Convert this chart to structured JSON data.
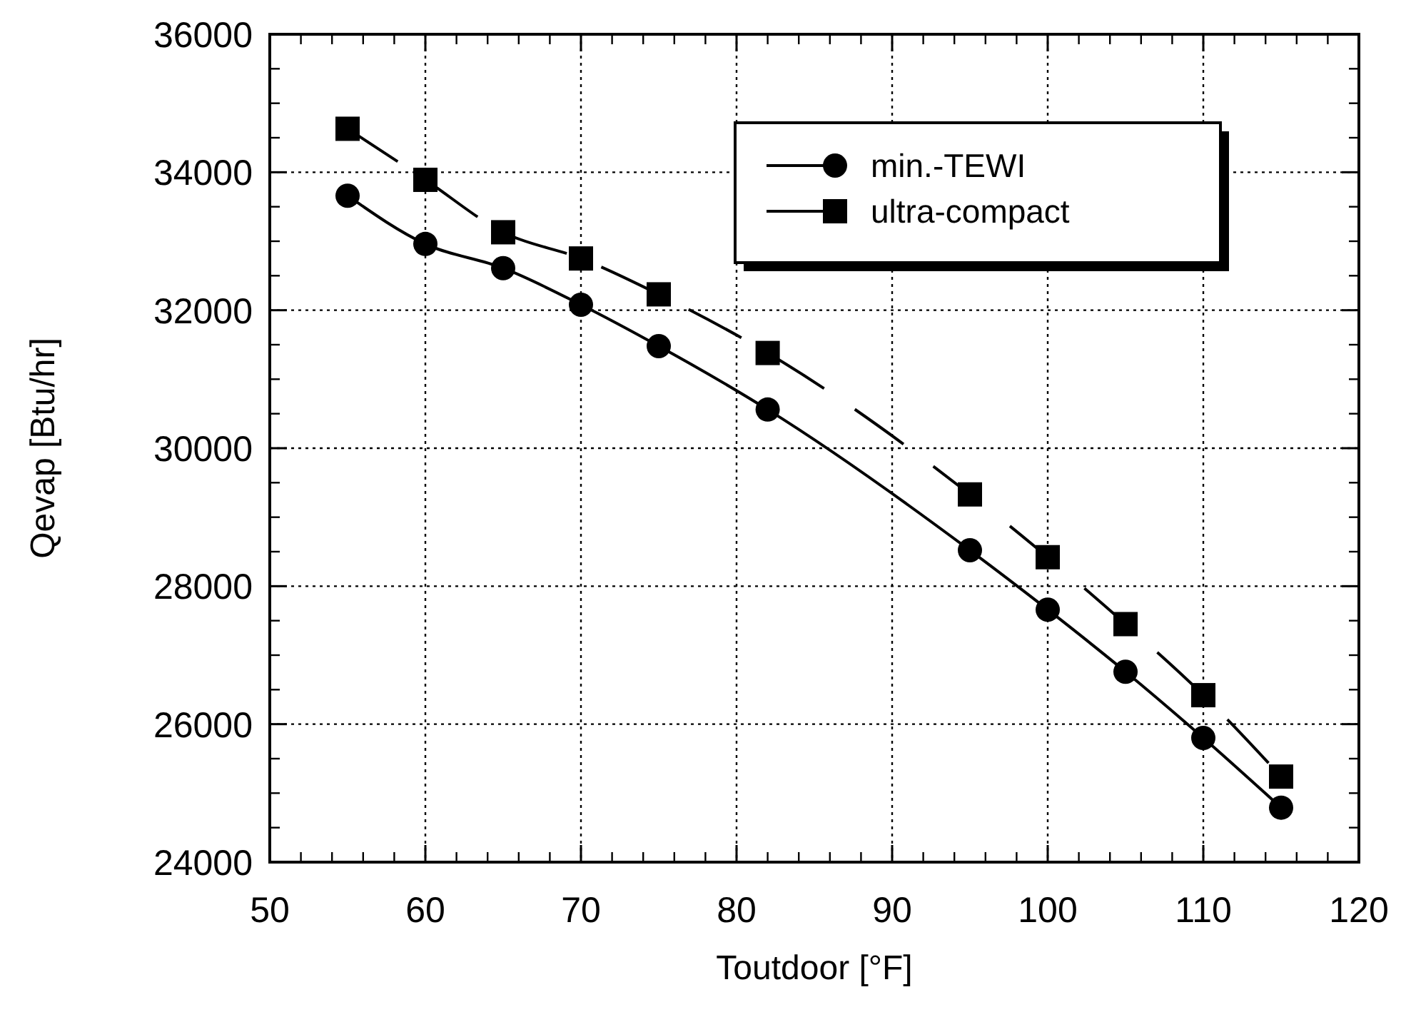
{
  "chart_data": {
    "type": "line",
    "xlabel": "Toutdoor [°F]",
    "ylabel": "Qevap [Btu/hr]",
    "xlim": [
      50,
      120
    ],
    "xticks": [
      50,
      60,
      70,
      80,
      90,
      100,
      110,
      120
    ],
    "ylim": [
      24000,
      36000
    ],
    "yticks": [
      24000,
      26000,
      28000,
      30000,
      32000,
      34000,
      36000
    ],
    "grid": true,
    "legend": "top right",
    "series": [
      {
        "name": "min.-TEWI",
        "color": "#000000",
        "marker": "circle",
        "line_style": "solid",
        "x": [
          55,
          60,
          65,
          70,
          75,
          82,
          95,
          100,
          105,
          110,
          115
        ],
        "values": [
          33660,
          32960,
          32610,
          32080,
          31480,
          30560,
          28520,
          27660,
          26760,
          25800,
          24790
        ]
      },
      {
        "name": "ultra-compact",
        "color": "#000000",
        "marker": "square",
        "line_style": "dashed",
        "x": [
          55,
          60,
          65,
          70,
          75,
          82,
          95,
          100,
          105,
          110,
          115
        ],
        "values": [
          34630,
          33890,
          33130,
          32750,
          32230,
          31380,
          29330,
          28420,
          27450,
          26420,
          25240
        ]
      }
    ]
  }
}
